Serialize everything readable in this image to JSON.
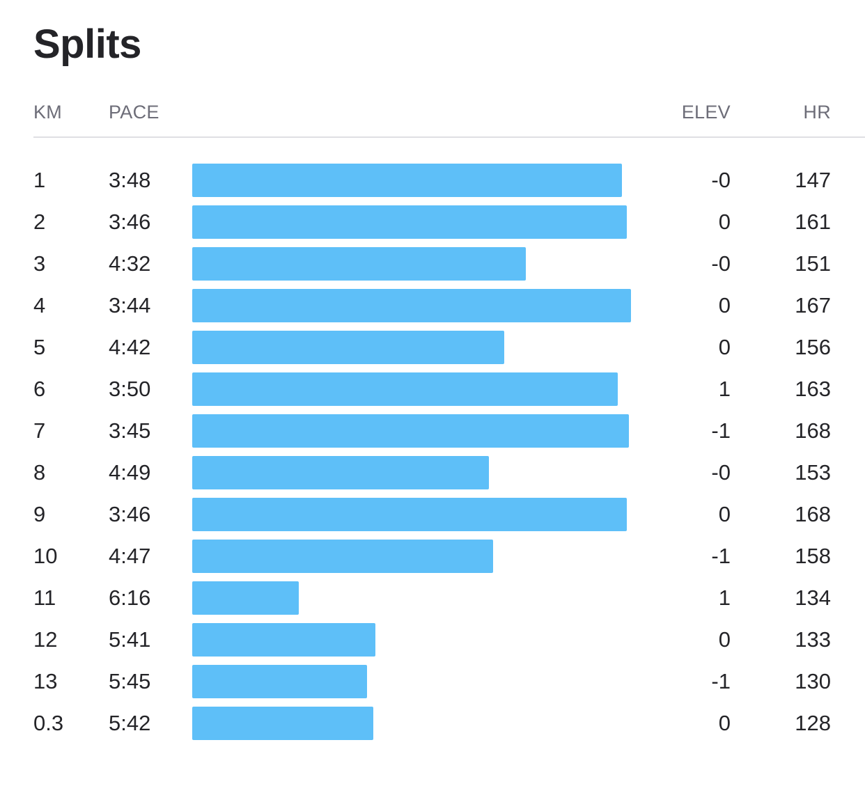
{
  "title": "Splits",
  "columns": {
    "km": "KM",
    "pace": "PACE",
    "elev": "ELEV",
    "hr": "HR"
  },
  "colors": {
    "bar": "#5ebff8",
    "text": "#242428",
    "header_text": "#6d6d78",
    "divider": "#dfdfe3"
  },
  "splits": [
    {
      "km": "1",
      "pace": "3:48",
      "elev": "-0",
      "hr": "147"
    },
    {
      "km": "2",
      "pace": "3:46",
      "elev": "0",
      "hr": "161"
    },
    {
      "km": "3",
      "pace": "4:32",
      "elev": "-0",
      "hr": "151"
    },
    {
      "km": "4",
      "pace": "3:44",
      "elev": "0",
      "hr": "167"
    },
    {
      "km": "5",
      "pace": "4:42",
      "elev": "0",
      "hr": "156"
    },
    {
      "km": "6",
      "pace": "3:50",
      "elev": "1",
      "hr": "163"
    },
    {
      "km": "7",
      "pace": "3:45",
      "elev": "-1",
      "hr": "168"
    },
    {
      "km": "8",
      "pace": "4:49",
      "elev": "-0",
      "hr": "153"
    },
    {
      "km": "9",
      "pace": "3:46",
      "elev": "0",
      "hr": "168"
    },
    {
      "km": "10",
      "pace": "4:47",
      "elev": "-1",
      "hr": "158"
    },
    {
      "km": "11",
      "pace": "6:16",
      "elev": "1",
      "hr": "134"
    },
    {
      "km": "12",
      "pace": "5:41",
      "elev": "0",
      "hr": "133"
    },
    {
      "km": "13",
      "pace": "5:45",
      "elev": "-1",
      "hr": "130"
    },
    {
      "km": "0.3",
      "pace": "5:42",
      "elev": "0",
      "hr": "128"
    }
  ]
}
